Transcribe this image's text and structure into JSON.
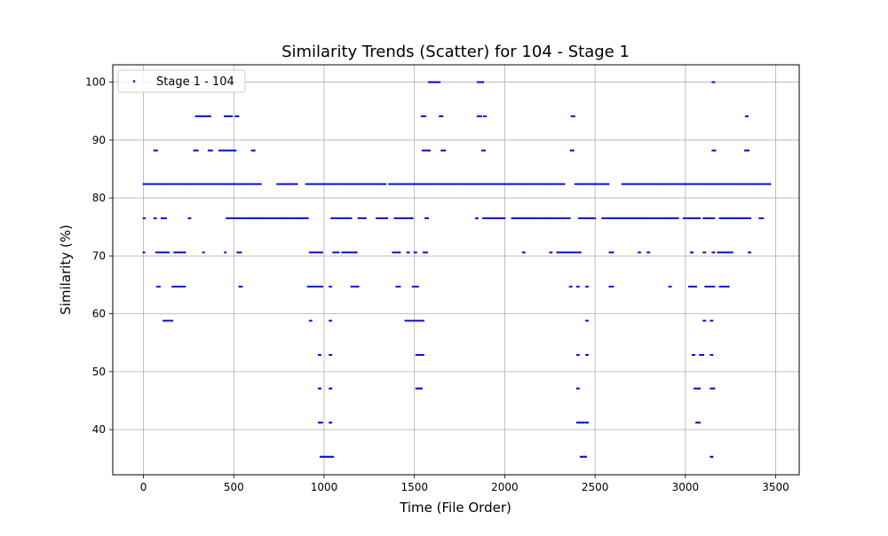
{
  "chart_data": {
    "type": "scatter",
    "title": "Similarity Trends (Scatter) for 104 - Stage 1",
    "xlabel": "Time (File Order)",
    "ylabel": "Similarity (%)",
    "xlim": [
      -170,
      3630
    ],
    "ylim": [
      32.2,
      103.0
    ],
    "x_ticks": [
      0,
      500,
      1000,
      1500,
      2000,
      2500,
      3000,
      3500
    ],
    "x_tick_labels": [
      "0",
      "500",
      "1000",
      "1500",
      "2000",
      "2500",
      "3000",
      "3500"
    ],
    "y_ticks": [
      40,
      50,
      60,
      70,
      80,
      90,
      100
    ],
    "y_tick_labels": [
      "40",
      "50",
      "60",
      "70",
      "80",
      "90",
      "100"
    ],
    "grid": true,
    "legend_position": "top-left",
    "series": [
      {
        "name": "Stage 1 - 104",
        "color": "#0000ff",
        "marker": "dot",
        "levels": [
          {
            "y": 100,
            "ranges": [
              [
                1580,
                1640
              ],
              [
                1850,
                1880
              ],
              [
                3150,
                3160
              ]
            ]
          },
          {
            "y": 94.1,
            "ranges": [
              [
                290,
                370
              ],
              [
                450,
                490
              ],
              [
                510,
                525
              ],
              [
                1540,
                1560
              ],
              [
                1640,
                1655
              ],
              [
                1850,
                1870
              ],
              [
                1885,
                1895
              ],
              [
                2370,
                2385
              ],
              [
                3335,
                3345
              ]
            ]
          },
          {
            "y": 88.2,
            "ranges": [
              [
                60,
                75
              ],
              [
                280,
                300
              ],
              [
                360,
                380
              ],
              [
                420,
                510
              ],
              [
                600,
                615
              ],
              [
                1545,
                1585
              ],
              [
                1650,
                1670
              ],
              [
                1875,
                1890
              ],
              [
                2365,
                2380
              ],
              [
                3150,
                3165
              ],
              [
                3330,
                3350
              ]
            ]
          },
          {
            "y": 82.4,
            "ranges": [
              [
                0,
                650
              ],
              [
                740,
                850
              ],
              [
                900,
                1340
              ],
              [
                1360,
                2330
              ],
              [
                2390,
                2575
              ],
              [
                2650,
                3470
              ]
            ]
          },
          {
            "y": 76.5,
            "ranges": [
              [
                0,
                8
              ],
              [
                60,
                70
              ],
              [
                100,
                125
              ],
              [
                250,
                260
              ],
              [
                460,
                910
              ],
              [
                1040,
                1150
              ],
              [
                1190,
                1230
              ],
              [
                1290,
                1350
              ],
              [
                1390,
                1490
              ],
              [
                1560,
                1575
              ],
              [
                1840,
                1850
              ],
              [
                1880,
                2000
              ],
              [
                2040,
                2360
              ],
              [
                2410,
                2500
              ],
              [
                2540,
                2960
              ],
              [
                2990,
                3080
              ],
              [
                3100,
                3160
              ],
              [
                3190,
                3360
              ],
              [
                3410,
                3430
              ]
            ]
          },
          {
            "y": 70.6,
            "ranges": [
              [
                0,
                5
              ],
              [
                70,
                140
              ],
              [
                170,
                230
              ],
              [
                330,
                335
              ],
              [
                450,
                455
              ],
              [
                520,
                540
              ],
              [
                920,
                990
              ],
              [
                1050,
                1080
              ],
              [
                1100,
                1180
              ],
              [
                1380,
                1420
              ],
              [
                1460,
                1470
              ],
              [
                1500,
                1510
              ],
              [
                1550,
                1570
              ],
              [
                2100,
                2110
              ],
              [
                2250,
                2260
              ],
              [
                2290,
                2420
              ],
              [
                2580,
                2600
              ],
              [
                2740,
                2750
              ],
              [
                2790,
                2800
              ],
              [
                3030,
                3040
              ],
              [
                3100,
                3110
              ],
              [
                3150,
                3160
              ],
              [
                3180,
                3260
              ],
              [
                3350,
                3360
              ]
            ]
          },
          {
            "y": 64.7,
            "ranges": [
              [
                75,
                90
              ],
              [
                160,
                230
              ],
              [
                530,
                545
              ],
              [
                910,
                990
              ],
              [
                1030,
                1040
              ],
              [
                1150,
                1190
              ],
              [
                1400,
                1420
              ],
              [
                1490,
                1520
              ],
              [
                2360,
                2370
              ],
              [
                2400,
                2410
              ],
              [
                2450,
                2460
              ],
              [
                2580,
                2600
              ],
              [
                2910,
                2920
              ],
              [
                3020,
                3060
              ],
              [
                3110,
                3160
              ],
              [
                3190,
                3240
              ]
            ]
          },
          {
            "y": 58.8,
            "ranges": [
              [
                110,
                160
              ],
              [
                920,
                930
              ],
              [
                1030,
                1040
              ],
              [
                1450,
                1550
              ],
              [
                2450,
                2460
              ],
              [
                3100,
                3110
              ],
              [
                3140,
                3150
              ]
            ]
          },
          {
            "y": 52.9,
            "ranges": [
              [
                970,
                980
              ],
              [
                1030,
                1040
              ],
              [
                1510,
                1550
              ],
              [
                2400,
                2410
              ],
              [
                2450,
                2460
              ],
              [
                3040,
                3050
              ],
              [
                3080,
                3100
              ],
              [
                3140,
                3150
              ]
            ]
          },
          {
            "y": 47.1,
            "ranges": [
              [
                970,
                980
              ],
              [
                1030,
                1040
              ],
              [
                1510,
                1540
              ],
              [
                2400,
                2410
              ],
              [
                3050,
                3080
              ],
              [
                3140,
                3160
              ]
            ]
          },
          {
            "y": 41.2,
            "ranges": [
              [
                970,
                990
              ],
              [
                1030,
                1040
              ],
              [
                2400,
                2440
              ],
              [
                2450,
                2460
              ],
              [
                3060,
                3080
              ]
            ]
          },
          {
            "y": 35.3,
            "ranges": [
              [
                980,
                1050
              ],
              [
                2420,
                2450
              ],
              [
                3140,
                3150
              ]
            ]
          }
        ]
      }
    ]
  }
}
